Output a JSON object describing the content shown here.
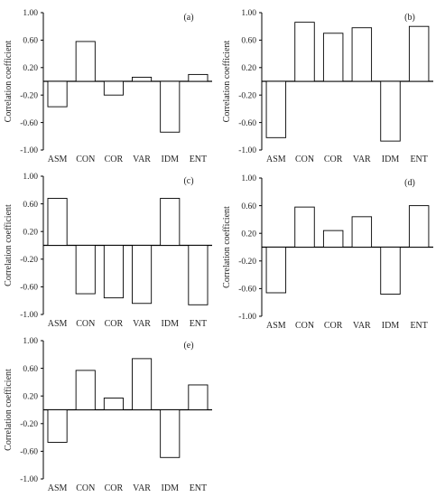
{
  "chart_data": [
    {
      "type": "bar",
      "panel_label": "(a)",
      "ylabel": "Correlation coefficient",
      "ylim": [
        -1.0,
        1.0
      ],
      "yticks": [
        "1.00",
        "0.60",
        "0.20",
        "-0.20",
        "-0.60",
        "-1.00"
      ],
      "categories": [
        "ASM",
        "CON",
        "COR",
        "VAR",
        "IDM",
        "ENT"
      ],
      "values": [
        -0.37,
        0.58,
        -0.2,
        0.06,
        -0.74,
        0.1
      ],
      "grid": false
    },
    {
      "type": "bar",
      "panel_label": "(b)",
      "ylabel": "Correlation coefficient",
      "ylim": [
        -1.0,
        1.0
      ],
      "yticks": [
        "1.00",
        "0.60",
        "0.20",
        "-0.20",
        "-0.60",
        "-1.00"
      ],
      "categories": [
        "ASM",
        "CON",
        "COR",
        "VAR",
        "IDM",
        "ENT"
      ],
      "values": [
        -0.82,
        0.86,
        0.7,
        0.78,
        -0.87,
        0.8
      ],
      "grid": false
    },
    {
      "type": "bar",
      "panel_label": "(c)",
      "ylabel": "Correlation coefficient",
      "ylim": [
        -1.0,
        1.0
      ],
      "yticks": [
        "1.00",
        "0.60",
        "0.20",
        "-0.20",
        "-0.60",
        "-1.00"
      ],
      "categories": [
        "ASM",
        "CON",
        "COR",
        "VAR",
        "IDM",
        "ENT"
      ],
      "values": [
        0.68,
        -0.7,
        -0.76,
        -0.84,
        0.68,
        -0.86
      ],
      "grid": false
    },
    {
      "type": "bar",
      "panel_label": "(d)",
      "ylabel": "Correlation coefficient",
      "ylim": [
        -1.0,
        1.0
      ],
      "yticks": [
        "1.00",
        "0.60",
        "0.20",
        "-0.20",
        "-0.60",
        "-1.00"
      ],
      "categories": [
        "ASM",
        "CON",
        "COR",
        "VAR",
        "IDM",
        "ENT"
      ],
      "values": [
        -0.66,
        0.58,
        0.24,
        0.44,
        -0.68,
        0.6
      ],
      "grid": false
    },
    {
      "type": "bar",
      "panel_label": "(e)",
      "ylabel": "Correlation coefficient",
      "ylim": [
        -1.0,
        1.0
      ],
      "yticks": [
        "1.00",
        "0.60",
        "0.20",
        "-0.20",
        "-0.60",
        "-1.00"
      ],
      "categories": [
        "ASM",
        "CON",
        "COR",
        "VAR",
        "IDM",
        "ENT"
      ],
      "values": [
        -0.47,
        0.57,
        0.17,
        0.74,
        -0.69,
        0.36
      ],
      "grid": false
    }
  ]
}
